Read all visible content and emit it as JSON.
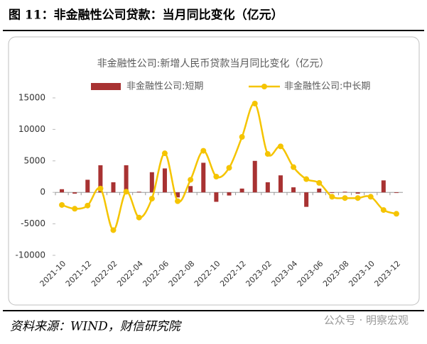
{
  "header": {
    "title": "图 11：非金融性公司贷款：当月同比变化（亿元）"
  },
  "chart_data": {
    "type": "bar-line",
    "title": "非金融性公司:新增人民币贷款当月同比变化（亿元）",
    "categories": [
      "2021-10",
      null,
      "2021-12",
      null,
      "2022-02",
      null,
      "2022-04",
      null,
      "2022-06",
      null,
      "2022-08",
      null,
      "2022-10",
      null,
      "2022-12",
      null,
      "2023-02",
      null,
      "2023-04",
      null,
      "2023-06",
      null,
      "2023-08",
      null,
      "2023-10",
      null,
      "2023-12"
    ],
    "series": [
      {
        "name": "非金融性公司:短期",
        "type": "bar",
        "color": "#a83232",
        "values": [
          500,
          -200,
          2000,
          4300,
          1600,
          4300,
          100,
          3200,
          3800,
          -800,
          1000,
          4700,
          -1500,
          -500,
          600,
          5000,
          1600,
          2700,
          800,
          -2300,
          600,
          -100,
          100,
          -200,
          0,
          1900,
          -100
        ]
      },
      {
        "name": "非金融性公司:中长期",
        "type": "line",
        "color": "#f5c400",
        "values": [
          -2000,
          -2600,
          -2100,
          600,
          -6000,
          100,
          -4000,
          -1000,
          6200,
          -1400,
          2000,
          6600,
          2500,
          3900,
          8800,
          14100,
          6100,
          7300,
          4000,
          2100,
          1500,
          -700,
          -900,
          -900,
          -700,
          -2800,
          -3400
        ]
      }
    ],
    "ylim": [
      -10000,
      15000
    ],
    "yticks": [
      -10000,
      -5000,
      0,
      5000,
      10000,
      15000
    ]
  },
  "footer": {
    "source": "资料来源：WIND，财信研究院",
    "watermark": "公众号 · 明察宏观"
  }
}
